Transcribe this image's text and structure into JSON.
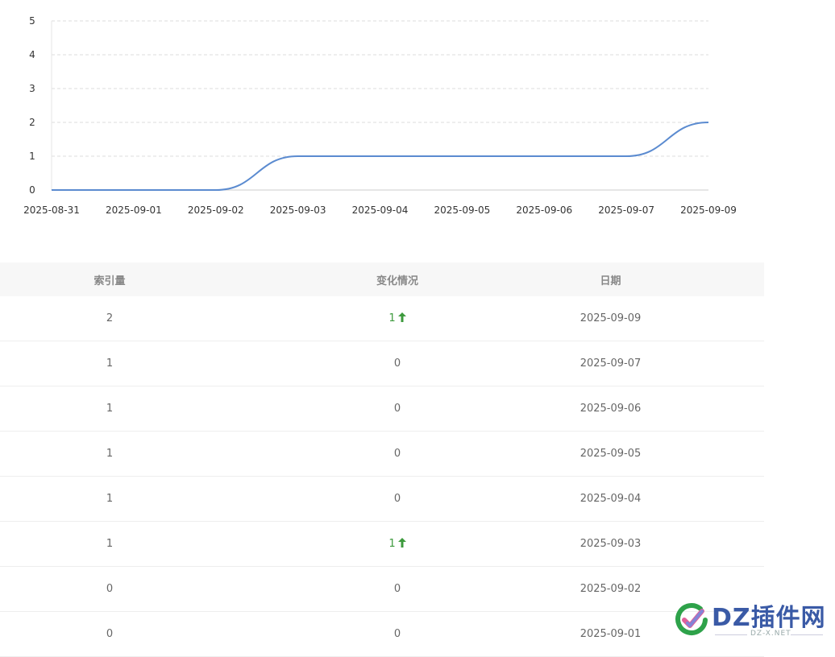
{
  "chart_data": {
    "type": "line",
    "categories": [
      "2025-08-31",
      "2025-09-01",
      "2025-09-02",
      "2025-09-03",
      "2025-09-04",
      "2025-09-05",
      "2025-09-06",
      "2025-09-07",
      "2025-09-09"
    ],
    "values": [
      0,
      0,
      0,
      1,
      1,
      1,
      1,
      1,
      2
    ],
    "ylim": [
      0,
      5
    ],
    "yticks": [
      "0",
      "1",
      "2",
      "3",
      "4",
      "5"
    ],
    "grid": true,
    "line_color": "#5b8bd0"
  },
  "table": {
    "headers": {
      "index": "索引量",
      "change": "变化情况",
      "date": "日期"
    },
    "rows": [
      {
        "index": "2",
        "change": "1",
        "up": true,
        "date": "2025-09-09"
      },
      {
        "index": "1",
        "change": "0",
        "up": false,
        "date": "2025-09-07"
      },
      {
        "index": "1",
        "change": "0",
        "up": false,
        "date": "2025-09-06"
      },
      {
        "index": "1",
        "change": "0",
        "up": false,
        "date": "2025-09-05"
      },
      {
        "index": "1",
        "change": "0",
        "up": false,
        "date": "2025-09-04"
      },
      {
        "index": "1",
        "change": "1",
        "up": true,
        "date": "2025-09-03"
      },
      {
        "index": "0",
        "change": "0",
        "up": false,
        "date": "2025-09-02"
      },
      {
        "index": "0",
        "change": "0",
        "up": false,
        "date": "2025-09-01"
      }
    ],
    "up_color": "#3d9a3d"
  },
  "watermark": {
    "brand": "DZ插件网",
    "sub": "DZ-X.NET"
  }
}
